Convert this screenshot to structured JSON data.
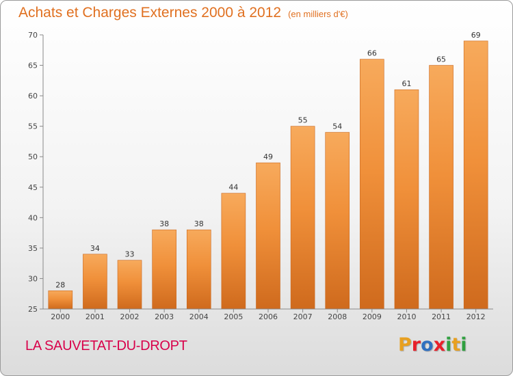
{
  "header": {
    "title": "Achats et Charges Externes 2000 à 2012",
    "subtitle": "(en milliers d'€)"
  },
  "footer": {
    "place_name": "LA SAUVETAT-DU-DROPT",
    "logo_letters": [
      "P",
      "r",
      "o",
      "x",
      "i",
      "t",
      "i"
    ],
    "logo_colors": [
      "#e8a020",
      "#e8202a",
      "#3070c0",
      "#e8202a",
      "#30a040",
      "#e8a020",
      "#30a040"
    ]
  },
  "chart_data": {
    "type": "bar",
    "categories": [
      "2000",
      "2001",
      "2002",
      "2003",
      "2004",
      "2005",
      "2006",
      "2007",
      "2008",
      "2009",
      "2010",
      "2011",
      "2012"
    ],
    "values": [
      28,
      34,
      33,
      38,
      38,
      44,
      49,
      55,
      54,
      66,
      61,
      65,
      69
    ],
    "data_labels": [
      "28",
      "34",
      "33",
      "38",
      "38",
      "44",
      "49",
      "55",
      "54",
      "66",
      "61",
      "65",
      "69"
    ],
    "title": "Achats et Charges Externes 2000 à 2012",
    "xlabel": "",
    "ylabel": "",
    "ylim": [
      25,
      70
    ],
    "yticks": [
      25,
      30,
      35,
      40,
      45,
      50,
      55,
      60,
      65,
      70
    ],
    "ytick_labels": [
      "25",
      "30",
      "35",
      "40",
      "45",
      "50",
      "55",
      "60",
      "65",
      "70"
    ],
    "grid": false,
    "bar_color": "#f0903a",
    "bar_color_light": "#f7aa5c",
    "bar_color_dark": "#cf6a1d"
  }
}
